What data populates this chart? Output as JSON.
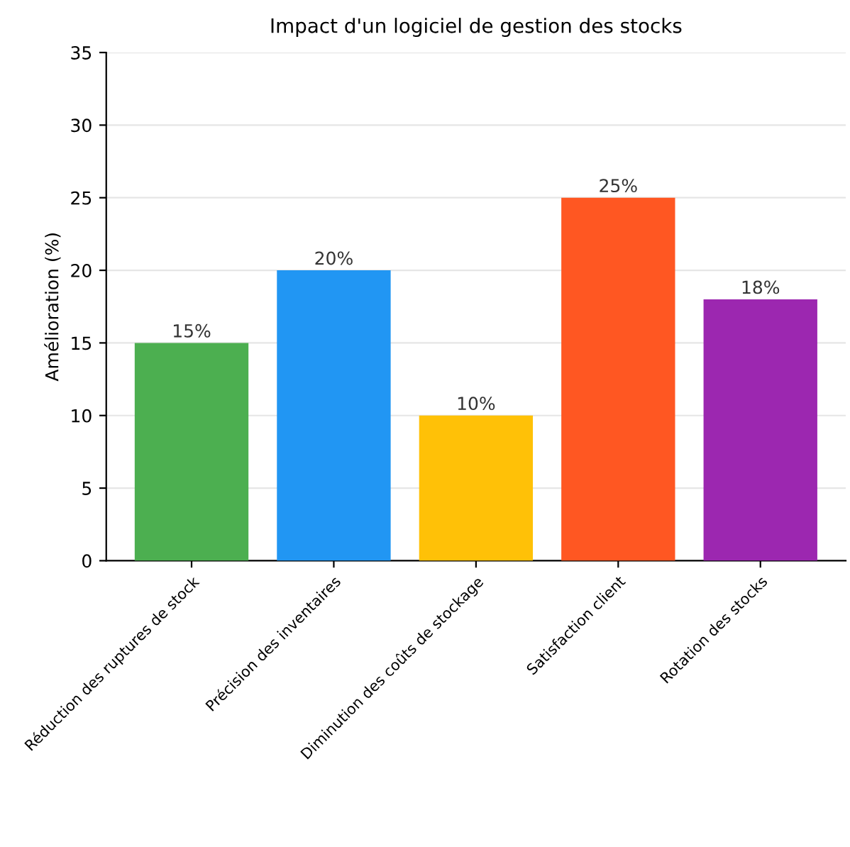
{
  "chart_data": {
    "type": "bar",
    "title": "Impact d'un logiciel de gestion des stocks",
    "ylabel": "Amélioration (%)",
    "categories": [
      "Réduction des ruptures de stock",
      "Précision des inventaires",
      "Diminution des coûts de stockage",
      "Satisfaction client",
      "Rotation des stocks"
    ],
    "values": [
      15,
      20,
      10,
      25,
      18
    ],
    "value_labels": [
      "15%",
      "20%",
      "10%",
      "25%",
      "18%"
    ],
    "colors": [
      "#4caf50",
      "#2196f3",
      "#ffc107",
      "#ff5722",
      "#9c27b0"
    ],
    "ylim": [
      0,
      35
    ],
    "yticks": [
      0,
      5,
      10,
      15,
      20,
      25,
      30,
      35
    ],
    "grid": "y"
  }
}
